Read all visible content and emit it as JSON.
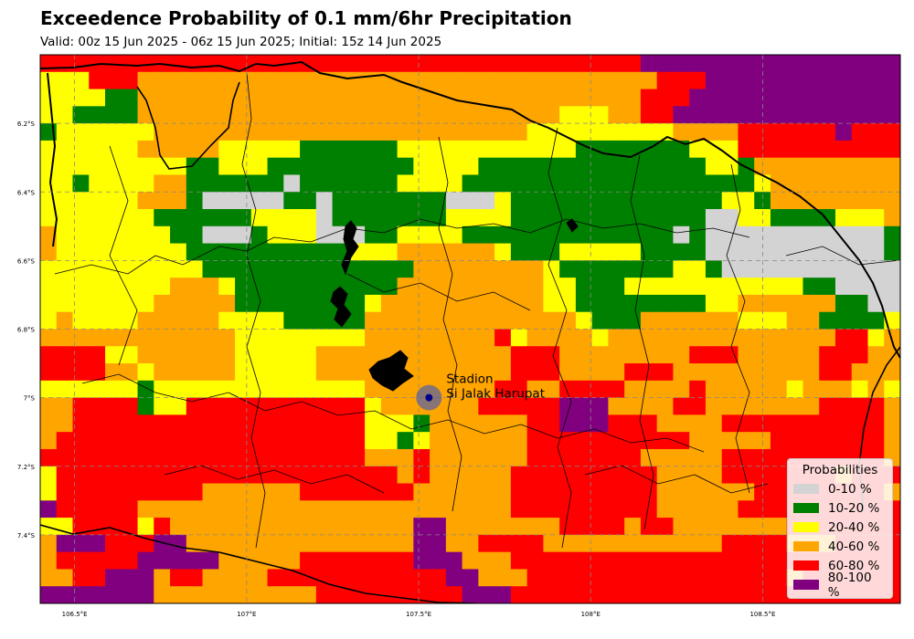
{
  "title": "Exceedence Probability of 0.1 mm/6hr Precipitation",
  "subtitle": "Valid: 00z 15 Jun 2025 - 06z 15 Jun 2025; Initial: 15z 14 Jun 2025",
  "colors": {
    "c0": "#d3d3d3",
    "c1": "#008000",
    "c2": "#ffff00",
    "c3": "#ffa500",
    "c4": "#ff0000",
    "c5": "#800080"
  },
  "legend": {
    "title": "Probabilities",
    "items": [
      {
        "label": "0-10 %",
        "color": "#d3d3d3"
      },
      {
        "label": "10-20 %",
        "color": "#008000"
      },
      {
        "label": "20-40 %",
        "color": "#ffff00"
      },
      {
        "label": "40-60 %",
        "color": "#ffa500"
      },
      {
        "label": "60-80 %",
        "color": "#ff0000"
      },
      {
        "label": "80-100 %",
        "color": "#800080"
      }
    ]
  },
  "map": {
    "lon_range": [
      106.4,
      108.9
    ],
    "lat_range": [
      -7.6,
      -6.0
    ],
    "x_ticks": [
      {
        "value": 106.5,
        "label": "106.5°E"
      },
      {
        "value": 107.0,
        "label": "107°E"
      },
      {
        "value": 107.5,
        "label": "107.5°E"
      },
      {
        "value": 108.0,
        "label": "108°E"
      },
      {
        "value": 108.5,
        "label": "108.5°E"
      }
    ],
    "y_ticks": [
      {
        "value": -6.2,
        "label": "6.2°S"
      },
      {
        "value": -6.4,
        "label": "6.4°S"
      },
      {
        "value": -6.6,
        "label": "6.6°S"
      },
      {
        "value": -6.8,
        "label": "6.8°S"
      },
      {
        "value": -7.0,
        "label": "7°S"
      },
      {
        "value": -7.2,
        "label": "7.2°S"
      },
      {
        "value": -7.4,
        "label": "7.4°S"
      }
    ]
  },
  "station": {
    "line1": "Stadion",
    "line2": "Si Jalak Harupat",
    "lon": 107.53,
    "lat": -7.0
  },
  "grid": {
    "rows": [
      "44444444444444444444444444444444444445555555555555555",
      "22244433333333333333333333333333333333444555555555555",
      "22221133333333333333333333333333333334445555555555555",
      "22111133333333333333333333333333222334455555555555555",
      "12222223333333333333333333333322222222233334444445444",
      "22222233333222221111112222222222211111112224444444444",
      "22222222211222111111111222211111111111111221333333333",
      "22122223311111101111112222111111111111111111233333333",
      "22222233310000011011111110002111111111111122133333333",
      "22222221111112222011111112222111111111111002211112223",
      "32222222110001222000112222111111111111101000000000001",
      "32222222211111111112223333332111222221111000000000001",
      "22222222221111111111111333333332111111122100000000000",
      "22222222333211111111113333333332211122222222222110000",
      "22222223333311111111233333333332211111111223333331100",
      "23222233333222211111333333333333321113333332223311112",
      "33333333333322222222333333334233332333333333333334423",
      "44442233333322222333333333333444333333334443333344433",
      "44443323333322222333333333333444333344433333333344333",
      "22222212222222222222333333334433444433334333332333232",
      "33444412244444444444233333344444555333344333333344443",
      "33444444444444444444222133333344555444333344444444443",
      "34444444444444444444221233333344444444443333344444443",
      "44444444444444444444333433333344444443333344444444443",
      "24444444444444444444443433333444444444333344444443444",
      "24444444443333334444444333333444444444333333444444443",
      "54444433333333333333333333333444444444333334444444444",
      "22444424333333333333333553333333444434433333334444444",
      "35554445533333333333333553344443333333333344443334444",
      "34444455555333334444444555333444444444444444444444444",
      "33445553443333444444444445533344444444444444443444444",
      "55555553333333333444444444555444444444444444444444444"
    ]
  }
}
